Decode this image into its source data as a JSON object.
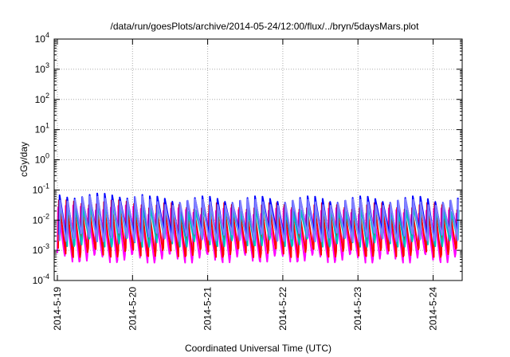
{
  "chart_data": {
    "type": "line",
    "title": "/data/run/goesPlots/archive/2014-05-24/12:00/flux/../bryn/5daysMars.plot",
    "xlabel": "Coordinated Universal Time (UTC)",
    "ylabel": "cGy/day",
    "yscale": "log",
    "ylim": [
      0.0001,
      10000
    ],
    "xlim_days": [
      0,
      5.6
    ],
    "y_ticks": [
      {
        "value": 0.0001,
        "base": "10",
        "exp": "-4"
      },
      {
        "value": 0.001,
        "base": "10",
        "exp": "-3"
      },
      {
        "value": 0.01,
        "base": "10",
        "exp": "-2"
      },
      {
        "value": 0.1,
        "base": "10",
        "exp": "-1"
      },
      {
        "value": 1,
        "base": "10",
        "exp": "0"
      },
      {
        "value": 10,
        "base": "10",
        "exp": "1"
      },
      {
        "value": 100,
        "base": "10",
        "exp": "2"
      },
      {
        "value": 1000,
        "base": "10",
        "exp": "3"
      },
      {
        "value": 10000,
        "base": "10",
        "exp": "4"
      }
    ],
    "x_ticks": [
      {
        "day": 0,
        "label": "2014-5-19"
      },
      {
        "day": 1,
        "label": "2014-5-20"
      },
      {
        "day": 2,
        "label": "2014-5-21"
      },
      {
        "day": 3,
        "label": "2014-5-22"
      },
      {
        "day": 4,
        "label": "2014-5-23"
      },
      {
        "day": 5,
        "label": "2014-5-24"
      }
    ],
    "grid": true,
    "sawtooth_period_days": 0.1,
    "series": [
      {
        "color": "#ff00ff",
        "peak": 0.02,
        "trough": 0.0006,
        "phase": 0.0
      },
      {
        "color": "#ff0000",
        "peak": 0.03,
        "trough": 0.0009,
        "phase": 0.01
      },
      {
        "color": "#00c0c0",
        "peak": 0.025,
        "trough": 0.002,
        "phase": 0.03
      },
      {
        "color": "#0000ff",
        "peak": 0.05,
        "trough": 0.004,
        "phase": 0.02
      },
      {
        "color": "#8080ff",
        "peak": 0.04,
        "trough": 0.003,
        "phase": 0.025
      }
    ]
  }
}
